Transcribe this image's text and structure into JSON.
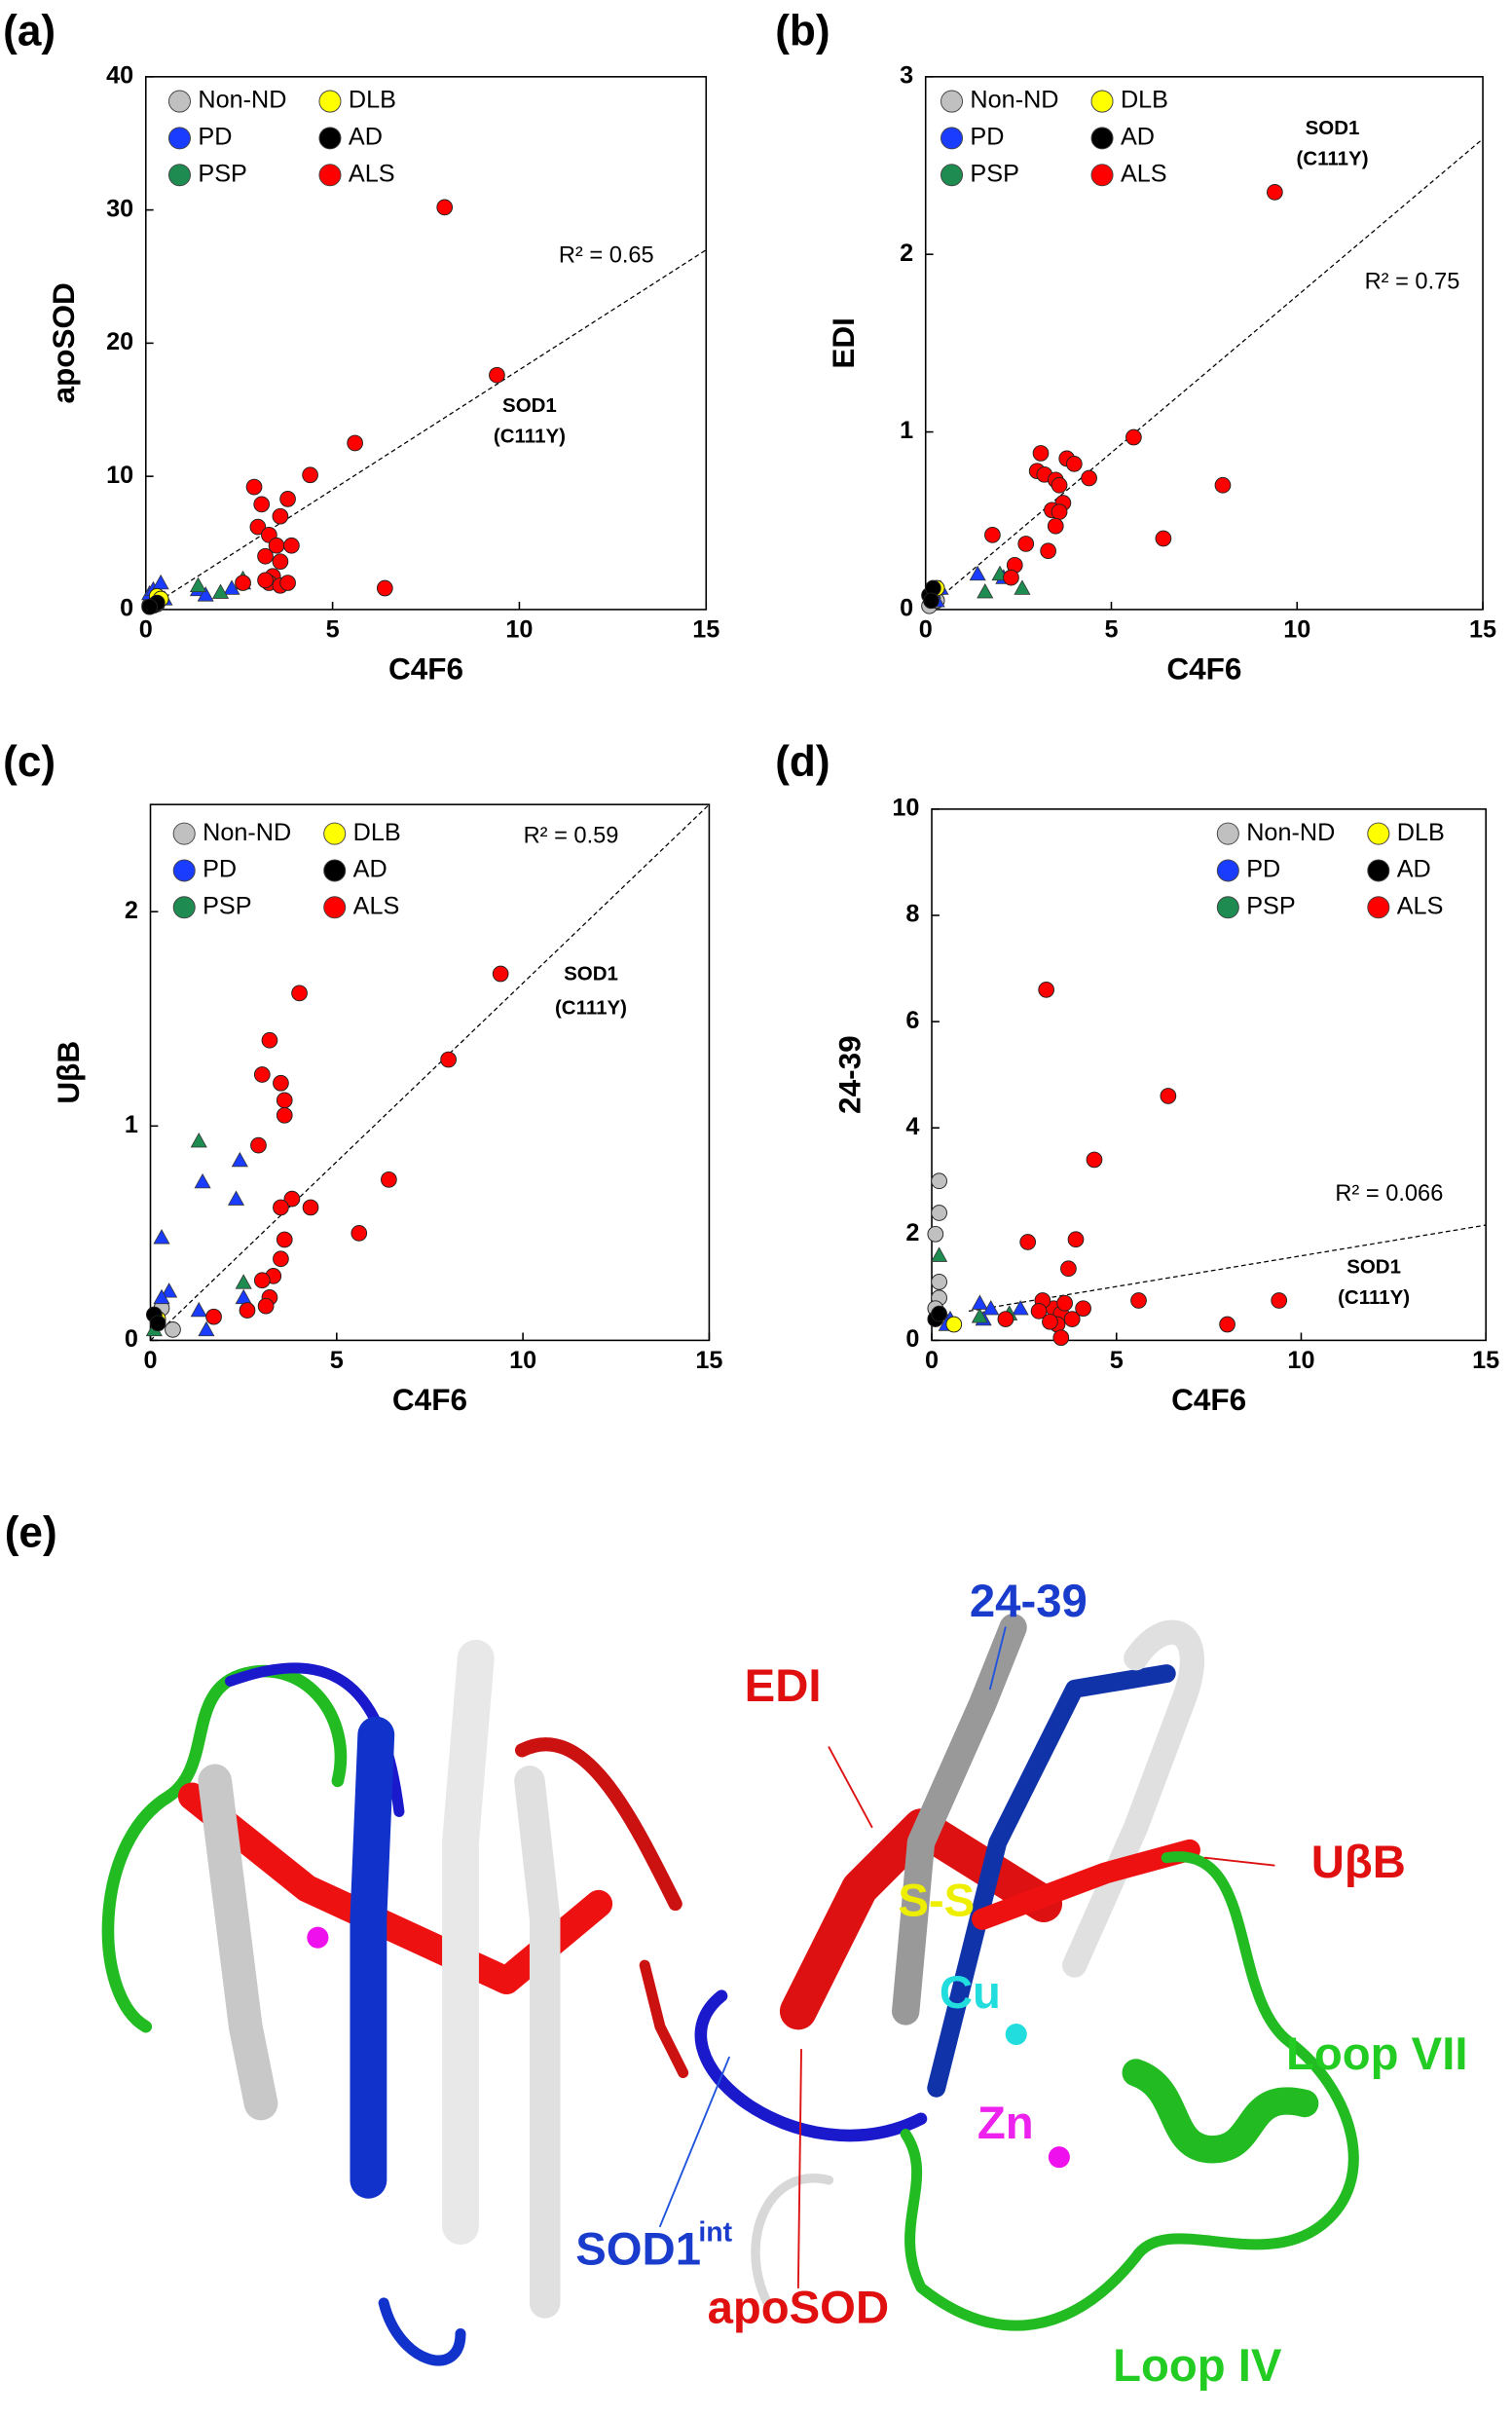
{
  "chart_data": [
    {
      "type": "scatter",
      "panel_label": "(a)",
      "x_label": "C4F6",
      "y_label": "apoSOD",
      "xlim": [
        0,
        15
      ],
      "xticks": [
        0,
        5,
        10,
        15
      ],
      "ylim": [
        0,
        40
      ],
      "yticks": [
        0,
        10,
        20,
        30,
        40
      ],
      "legend": "upper left",
      "series": [
        {
          "name": "Non-ND",
          "color": "#c0c0c0",
          "marker": "circle",
          "x": [
            0.1,
            0.2,
            0.3
          ],
          "values": [
            0.3,
            0.6,
            0.4
          ]
        },
        {
          "name": "PD",
          "color": "#1a3cff",
          "marker": "triangle",
          "x": [
            0.1,
            0.2,
            0.4,
            0.3,
            0.5,
            0.2,
            1.4,
            1.6,
            2.3,
            2.6
          ],
          "values": [
            1.2,
            1.5,
            2.0,
            1.0,
            0.8,
            0.7,
            1.5,
            1.1,
            1.6,
            2.0
          ]
        },
        {
          "name": "PSP",
          "color": "#1e8c50",
          "marker": "triangle",
          "x": [
            1.4,
            2.0,
            2.6
          ],
          "values": [
            1.8,
            1.3,
            2.3
          ]
        },
        {
          "name": "DLB",
          "color": "#ffff00",
          "marker": "circle",
          "x": [
            0.3,
            0.4
          ],
          "values": [
            1.0,
            0.8
          ]
        },
        {
          "name": "AD",
          "color": "#000000",
          "marker": "circle",
          "x": [
            0.2,
            0.3,
            0.1
          ],
          "values": [
            0.3,
            0.5,
            0.2
          ]
        },
        {
          "name": "ALS",
          "color": "#ff0000",
          "marker": "circle",
          "x": [
            8,
            9.4,
            5.6,
            4.4,
            3.8,
            2.9,
            3.1,
            3.6,
            3.0,
            3.3,
            3.5,
            3.9,
            3.2,
            3.6,
            3.4,
            3.3,
            3.6,
            3.2,
            6.4,
            2.6,
            3.8
          ],
          "values": [
            30.2,
            17.6,
            12.5,
            10.1,
            8.3,
            9.2,
            7.9,
            7.0,
            6.2,
            5.6,
            4.8,
            4.8,
            4.0,
            3.6,
            2.5,
            2.0,
            1.8,
            2.2,
            1.6,
            2.0,
            2.0
          ]
        }
      ],
      "trendline": {
        "x": [
          0,
          15
        ],
        "y": [
          0,
          27
        ]
      },
      "annotations": [
        "R² = 0.65",
        "SOD1",
        "(C111Y)"
      ]
    },
    {
      "type": "scatter",
      "panel_label": "(b)",
      "x_label": "C4F6",
      "y_label": "EDI",
      "xlim": [
        0,
        15
      ],
      "xticks": [
        0,
        5,
        10,
        15
      ],
      "ylim": [
        0,
        3
      ],
      "yticks": [
        0,
        1,
        2,
        3
      ],
      "legend": "upper left",
      "series": [
        {
          "name": "Non-ND",
          "color": "#c0c0c0",
          "marker": "circle",
          "x": [
            0.1,
            0.3
          ],
          "values": [
            0.02,
            0.05
          ]
        },
        {
          "name": "PD",
          "color": "#1a3cff",
          "marker": "triangle",
          "x": [
            0.2,
            0.4,
            1.4,
            2.1,
            0.3
          ],
          "values": [
            0.1,
            0.12,
            0.2,
            0.18,
            0.05
          ]
        },
        {
          "name": "PSP",
          "color": "#1e8c50",
          "marker": "triangle",
          "x": [
            2.6,
            2.0,
            1.6
          ],
          "values": [
            0.12,
            0.2,
            0.1
          ]
        },
        {
          "name": "DLB",
          "color": "#ffff00",
          "marker": "circle",
          "x": [
            0.3
          ],
          "values": [
            0.12
          ]
        },
        {
          "name": "AD",
          "color": "#000000",
          "marker": "circle",
          "x": [
            0.1,
            0.2,
            0.15
          ],
          "values": [
            0.08,
            0.12,
            0.05
          ]
        },
        {
          "name": "ALS",
          "color": "#ff0000",
          "marker": "circle",
          "x": [
            9.4,
            8,
            5.6,
            6.4,
            4.4,
            3.8,
            4.0,
            3.1,
            3.0,
            3.2,
            3.5,
            3.6,
            3.7,
            3.4,
            3.6,
            3.5,
            3.3,
            2.7,
            1.8,
            2.4,
            2.3
          ],
          "values": [
            2.35,
            0.7,
            0.97,
            0.4,
            0.74,
            0.85,
            0.82,
            0.88,
            0.78,
            0.76,
            0.73,
            0.7,
            0.6,
            0.56,
            0.55,
            0.47,
            0.33,
            0.37,
            0.42,
            0.25,
            0.18
          ]
        }
      ],
      "trendline": {
        "x": [
          0,
          15
        ],
        "y": [
          0,
          2.65
        ]
      },
      "annotations": [
        "R² = 0.75",
        "SOD1",
        "(C111Y)"
      ]
    },
    {
      "type": "scatter",
      "panel_label": "(c)",
      "x_label": "C4F6",
      "y_label": "UβB",
      "xlim": [
        0,
        15
      ],
      "xticks": [
        0,
        5,
        10,
        15
      ],
      "ylim": [
        0,
        2.5
      ],
      "yticks": [
        0,
        1,
        2
      ],
      "legend": "upper left",
      "series": [
        {
          "name": "Non-ND",
          "color": "#c0c0c0",
          "marker": "circle",
          "x": [
            0.3,
            0.6
          ],
          "values": [
            0.15,
            0.05
          ]
        },
        {
          "name": "PD",
          "color": "#1a3cff",
          "marker": "triangle",
          "x": [
            0.3,
            2.4,
            2.3,
            1.4,
            0.5,
            0.3,
            1.3,
            1.5,
            2.5
          ],
          "values": [
            0.48,
            0.84,
            0.66,
            0.74,
            0.23,
            0.2,
            0.14,
            0.05,
            0.2
          ]
        },
        {
          "name": "PSP",
          "color": "#1e8c50",
          "marker": "triangle",
          "x": [
            1.3,
            2.5,
            0.1
          ],
          "values": [
            0.93,
            0.27,
            0.05
          ]
        },
        {
          "name": "DLB",
          "color": "#ffff00",
          "marker": "circle",
          "x": [
            0.2
          ],
          "values": [
            0.1
          ]
        },
        {
          "name": "AD",
          "color": "#000000",
          "marker": "circle",
          "x": [
            0.1,
            0.2
          ],
          "values": [
            0.12,
            0.08
          ]
        },
        {
          "name": "ALS",
          "color": "#ff0000",
          "marker": "circle",
          "x": [
            9.4,
            8,
            4.0,
            3.2,
            3.0,
            3.5,
            3.6,
            3.6,
            2.9,
            6.4,
            3.8,
            3.5,
            4.3,
            5.6,
            3.6,
            3.5,
            3.3,
            3.0,
            3.2,
            2.6,
            3.1,
            1.7
          ],
          "values": [
            1.71,
            1.31,
            1.62,
            1.4,
            1.24,
            1.2,
            1.12,
            1.05,
            0.91,
            0.75,
            0.66,
            0.62,
            0.62,
            0.5,
            0.47,
            0.38,
            0.3,
            0.28,
            0.2,
            0.14,
            0.16,
            0.11
          ]
        }
      ],
      "trendline": {
        "x": [
          0,
          15
        ],
        "y": [
          0,
          2.5
        ]
      },
      "annotations": [
        "R² = 0.59",
        "SOD1",
        "(C111Y)"
      ]
    },
    {
      "type": "scatter",
      "panel_label": "(d)",
      "x_label": "C4F6",
      "y_label": "24-39",
      "xlim": [
        0,
        15
      ],
      "xticks": [
        0,
        5,
        10,
        15
      ],
      "ylim": [
        0,
        10
      ],
      "yticks": [
        0,
        2,
        4,
        6,
        8,
        10
      ],
      "legend": "upper right",
      "series": [
        {
          "name": "Non-ND",
          "color": "#c0c0c0",
          "marker": "circle",
          "x": [
            0.2,
            0.2,
            0.1,
            0.2,
            0.2,
            0.1
          ],
          "values": [
            3.0,
            2.4,
            2.0,
            1.1,
            0.8,
            0.6
          ]
        },
        {
          "name": "PD",
          "color": "#1a3cff",
          "marker": "triangle",
          "x": [
            0.3,
            0.5,
            1.3,
            1.6,
            2.4,
            1.4,
            0.4
          ],
          "values": [
            0.5,
            0.4,
            0.7,
            0.6,
            0.6,
            0.4,
            0.3
          ]
        },
        {
          "name": "PSP",
          "color": "#1e8c50",
          "marker": "triangle",
          "x": [
            0.2,
            2.1,
            1.3
          ],
          "values": [
            1.6,
            0.5,
            0.45
          ]
        },
        {
          "name": "DLB",
          "color": "#ffff00",
          "marker": "circle",
          "x": [
            0.6
          ],
          "values": [
            0.3
          ]
        },
        {
          "name": "AD",
          "color": "#000000",
          "marker": "circle",
          "x": [
            0.1,
            0.2
          ],
          "values": [
            0.4,
            0.5
          ]
        },
        {
          "name": "ALS",
          "color": "#ff0000",
          "marker": "circle",
          "x": [
            3.1,
            6.4,
            4.4,
            2.6,
            3.9,
            3.7,
            9.4,
            5.6,
            8,
            3.3,
            3.5,
            3.6,
            3.0,
            3.8,
            3.4,
            2.9,
            3.2,
            3.5,
            2.0,
            4.1
          ],
          "values": [
            6.6,
            4.6,
            3.4,
            1.85,
            1.9,
            1.35,
            0.75,
            0.75,
            0.3,
            0.6,
            0.5,
            0.7,
            0.75,
            0.4,
            0.3,
            0.55,
            0.35,
            0.05,
            0.4,
            0.6
          ]
        }
      ],
      "trendline": {
        "x": [
          1,
          15
        ],
        "y": [
          0.55,
          2.17
        ]
      },
      "annotations": [
        "R² = 0.066",
        "SOD1",
        "(C111Y)"
      ]
    }
  ],
  "structure": {
    "panel_label": "(e)",
    "labels": [
      "24-39",
      "EDI",
      "UβB",
      "S-S",
      "Cu",
      "Loop VII",
      "Zn",
      "SOD1",
      "int",
      "apoSOD",
      "Loop IV"
    ]
  }
}
